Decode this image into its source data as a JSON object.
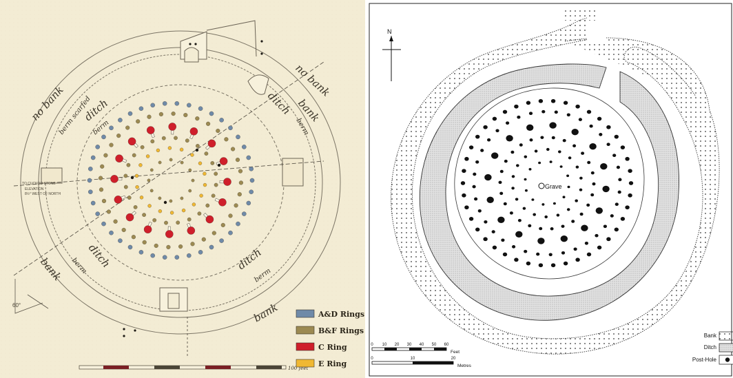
{
  "left_plan": {
    "ditch_labels": [
      "ditch",
      "ditch",
      "ditch",
      "ditch"
    ],
    "bank_labels": [
      "bank",
      "bank",
      "bank"
    ],
    "no_bank_labels": [
      "no bank",
      "no bank"
    ],
    "berm_labels": [
      "berm",
      "berm",
      "berm",
      "berm"
    ],
    "berm_scarfed_label": "berm scarfed",
    "angle_label": "60°",
    "stone_note": "TO CUCKOO STONE",
    "elevation_note": "ELEVATION",
    "bearing_note": "8½° WEST OF NORTH",
    "scale_label": "100 feet",
    "legend": [
      {
        "label": "A&D Rings",
        "color": "#6f8aa8"
      },
      {
        "label": "B&F Rings",
        "color": "#9c8a52"
      },
      {
        "label": "C Ring",
        "color": "#cf1f2b"
      },
      {
        "label": "E Ring",
        "color": "#f0b833"
      }
    ]
  },
  "right_plan": {
    "north_label": "N",
    "grave_label": "Grave",
    "scale_feet": {
      "ticks": [
        "0",
        "10",
        "20",
        "30",
        "40",
        "50",
        "60"
      ],
      "unit": "Feet"
    },
    "scale_metres": {
      "ticks": [
        "0",
        "10",
        "20"
      ],
      "unit": "Metres"
    },
    "key": [
      {
        "label": "Bank",
        "pattern": "bank"
      },
      {
        "label": "Ditch",
        "pattern": "ditch"
      },
      {
        "label": "Post-Hole",
        "pattern": "posthole"
      }
    ]
  }
}
